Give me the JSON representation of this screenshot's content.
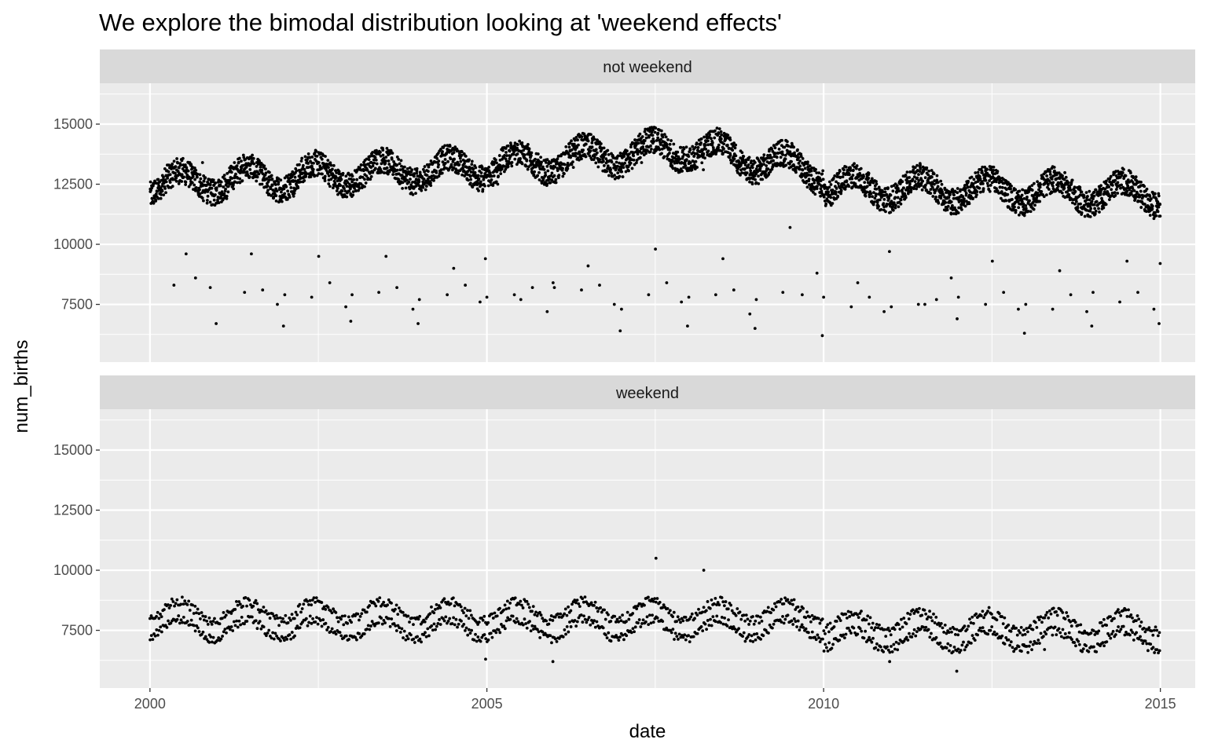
{
  "chart_data": {
    "type": "scatter",
    "title": "We explore the bimodal distribution looking at 'weekend effects'",
    "xlabel": "date",
    "ylabel": "num_births",
    "x_ticks": [
      "2000",
      "2005",
      "2010",
      "2015"
    ],
    "x_range": [
      "1999-04-04",
      "2015-07-09"
    ],
    "y_ticks": [
      7500,
      10000,
      12500,
      15000
    ],
    "ylim": [
      5100,
      16700
    ],
    "facets": [
      "not weekend",
      "weekend"
    ],
    "grid": true,
    "point_color": "#000000",
    "panel_background": "#ebebeb",
    "strip_background": "#d9d9d9",
    "series": [
      {
        "name": "not weekend",
        "points": [
          [
            "2000-01-03",
            12300
          ],
          [
            "2000-02-01",
            11800
          ],
          [
            "2000-03-15",
            12600
          ],
          [
            "2000-04-20",
            12900
          ],
          [
            "2000-05-10",
            8300
          ],
          [
            "2000-06-05",
            13200
          ],
          [
            "2000-07-15",
            9600
          ],
          [
            "2000-08-20",
            12900
          ],
          [
            "2000-09-04",
            8600
          ],
          [
            "2000-10-12",
            13400
          ],
          [
            "2000-11-23",
            8200
          ],
          [
            "2000-12-25",
            6700
          ],
          [
            "2001-01-15",
            12100
          ],
          [
            "2001-02-20",
            11900
          ],
          [
            "2001-03-12",
            12500
          ],
          [
            "2001-05-28",
            8000
          ],
          [
            "2001-07-04",
            9600
          ],
          [
            "2001-09-03",
            8100
          ],
          [
            "2001-10-08",
            12800
          ],
          [
            "2001-11-22",
            7500
          ],
          [
            "2001-12-25",
            6600
          ],
          [
            "2002-01-01",
            7900
          ],
          [
            "2002-02-18",
            12000
          ],
          [
            "2002-04-10",
            12600
          ],
          [
            "2002-05-27",
            7800
          ],
          [
            "2002-07-04",
            9500
          ],
          [
            "2002-09-02",
            8400
          ],
          [
            "2002-10-30",
            12800
          ],
          [
            "2002-11-28",
            7400
          ],
          [
            "2002-12-25",
            6800
          ],
          [
            "2003-01-01",
            7900
          ],
          [
            "2003-03-10",
            12400
          ],
          [
            "2003-05-26",
            8000
          ],
          [
            "2003-07-04",
            9500
          ],
          [
            "2003-09-01",
            8200
          ],
          [
            "2003-11-27",
            7300
          ],
          [
            "2003-12-25",
            6700
          ],
          [
            "2004-01-01",
            7700
          ],
          [
            "2004-03-15",
            12700
          ],
          [
            "2004-05-31",
            7900
          ],
          [
            "2004-07-05",
            9000
          ],
          [
            "2004-09-06",
            8300
          ],
          [
            "2004-11-25",
            7600
          ],
          [
            "2004-12-24",
            9400
          ],
          [
            "2005-01-01",
            7800
          ],
          [
            "2005-03-01",
            12500
          ],
          [
            "2005-05-30",
            7900
          ],
          [
            "2005-07-04",
            7700
          ],
          [
            "2005-09-05",
            8200
          ],
          [
            "2005-11-24",
            7200
          ],
          [
            "2005-12-26",
            8400
          ],
          [
            "2006-01-02",
            8200
          ],
          [
            "2006-04-15",
            13200
          ],
          [
            "2006-05-29",
            8100
          ],
          [
            "2006-07-04",
            9100
          ],
          [
            "2006-09-04",
            8300
          ],
          [
            "2006-11-23",
            7500
          ],
          [
            "2006-12-25",
            6400
          ],
          [
            "2007-01-01",
            7300
          ],
          [
            "2007-04-20",
            13400
          ],
          [
            "2007-05-28",
            7900
          ],
          [
            "2007-07-04",
            9800
          ],
          [
            "2007-09-03",
            8400
          ],
          [
            "2007-11-22",
            7600
          ],
          [
            "2007-12-25",
            6600
          ],
          [
            "2008-01-01",
            7800
          ],
          [
            "2008-03-20",
            13100
          ],
          [
            "2008-05-26",
            7900
          ],
          [
            "2008-07-04",
            9400
          ],
          [
            "2008-09-01",
            8100
          ],
          [
            "2008-11-27",
            7100
          ],
          [
            "2008-12-25",
            6500
          ],
          [
            "2009-01-01",
            7700
          ],
          [
            "2009-05-25",
            8000
          ],
          [
            "2009-07-03",
            10700
          ],
          [
            "2009-09-07",
            7900
          ],
          [
            "2009-11-26",
            8800
          ],
          [
            "2009-12-25",
            6200
          ],
          [
            "2010-01-01",
            7800
          ],
          [
            "2010-05-31",
            7400
          ],
          [
            "2010-07-05",
            8400
          ],
          [
            "2010-09-06",
            7800
          ],
          [
            "2010-11-25",
            7200
          ],
          [
            "2010-12-24",
            9700
          ],
          [
            "2011-01-03",
            7400
          ],
          [
            "2011-05-30",
            7500
          ],
          [
            "2011-07-04",
            7500
          ],
          [
            "2011-09-05",
            7700
          ],
          [
            "2011-11-24",
            8600
          ],
          [
            "2011-12-26",
            6900
          ],
          [
            "2012-01-02",
            7800
          ],
          [
            "2012-05-28",
            7500
          ],
          [
            "2012-07-04",
            9300
          ],
          [
            "2012-09-03",
            8000
          ],
          [
            "2012-11-22",
            7300
          ],
          [
            "2012-12-25",
            6300
          ],
          [
            "2013-01-01",
            7500
          ],
          [
            "2013-05-27",
            7300
          ],
          [
            "2013-07-04",
            8900
          ],
          [
            "2013-09-02",
            7900
          ],
          [
            "2013-11-28",
            7200
          ],
          [
            "2013-12-25",
            6600
          ],
          [
            "2014-01-01",
            8000
          ],
          [
            "2014-05-26",
            7600
          ],
          [
            "2014-07-04",
            9300
          ],
          [
            "2014-09-01",
            8000
          ],
          [
            "2014-11-27",
            7300
          ],
          [
            "2014-12-25",
            6700
          ],
          [
            "2014-12-31",
            9200
          ]
        ]
      },
      {
        "name": "weekend",
        "points": [
          [
            "2000-11-18",
            7000
          ],
          [
            "2004-12-25",
            6300
          ],
          [
            "2005-12-25",
            6200
          ],
          [
            "2007-07-07",
            10500
          ],
          [
            "2008-03-22",
            10000
          ],
          [
            "2010-12-25",
            6200
          ],
          [
            "2011-12-24",
            5800
          ],
          [
            "2012-12-22",
            6900
          ],
          [
            "2013-04-13",
            6700
          ]
        ]
      }
    ]
  }
}
